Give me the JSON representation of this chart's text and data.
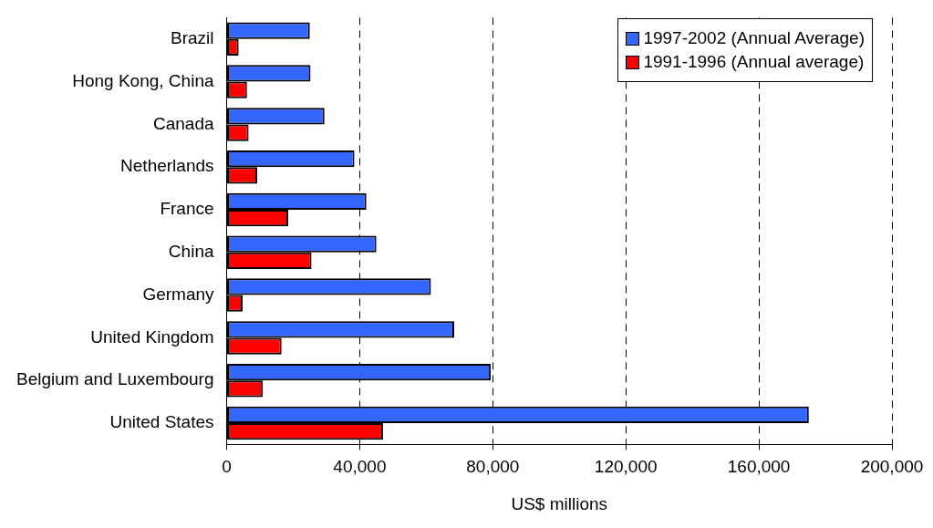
{
  "chart_data": {
    "type": "bar",
    "orientation": "horizontal",
    "xlabel": "US$ millions",
    "categories": [
      "Brazil",
      "Hong Kong, China",
      "Canada",
      "Netherlands",
      "France",
      "China",
      "Germany",
      "United Kingdom",
      "Belgium and Luxembourg",
      "United States"
    ],
    "series": [
      {
        "name": "1997-2002 (Annual Average)",
        "color": "#3366ff",
        "values": [
          25000,
          25200,
          29400,
          38400,
          42000,
          45000,
          61400,
          68400,
          79400,
          175000
        ]
      },
      {
        "name": "1991-1996 (Annual average)",
        "color": "#ff0000",
        "values": [
          3600,
          6100,
          6600,
          9200,
          18500,
          25500,
          4800,
          16500,
          10900,
          47000
        ]
      }
    ],
    "xlim": [
      0,
      200000
    ],
    "xticks": [
      0,
      {
        "value": 40000,
        "label": "40,000"
      },
      {
        "value": 80000,
        "label": "80,000"
      },
      {
        "value": 120000,
        "label": "120,000"
      },
      {
        "value": 160000,
        "label": "160,000"
      },
      {
        "value": 200000,
        "label": "200,000"
      }
    ],
    "grid": "x",
    "legend": "top right"
  }
}
